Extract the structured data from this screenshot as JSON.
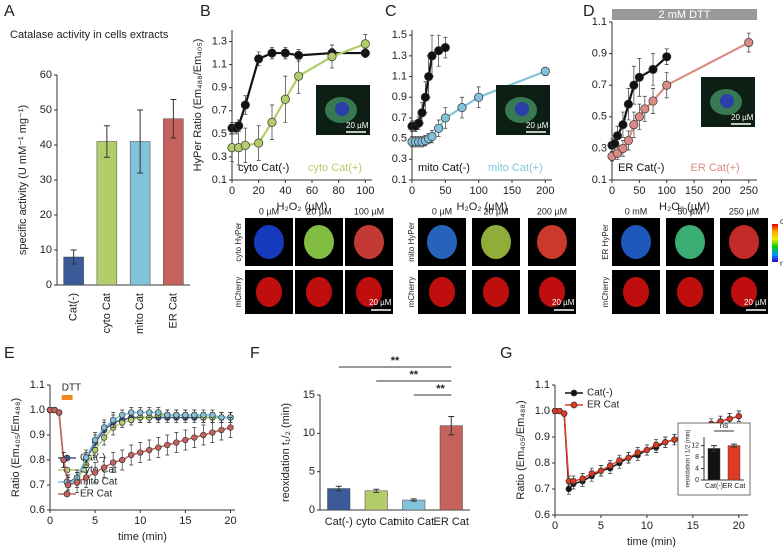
{
  "chart_data": [
    {
      "panel": "A",
      "type": "bar",
      "title": "Catalase activity in cells extracts",
      "y_label": "specific activity (U mM⁻¹ mg⁻¹)",
      "categories": [
        "Cat(-)",
        "cyto Cat",
        "mito Cat",
        "ER Cat"
      ],
      "values": [
        8,
        41,
        41,
        47.5
      ],
      "errors": [
        2,
        4.5,
        9,
        5.5
      ],
      "colors": [
        "#3a5a98",
        "#b3cd6c",
        "#82c2da",
        "#c6625c"
      ],
      "ylim": [
        0,
        60
      ],
      "yticks": [
        0,
        10,
        20,
        30,
        40,
        50,
        60
      ]
    },
    {
      "panel": "B",
      "type": "scatter",
      "x_label": "H₂O₂ (µM)",
      "y_label": "HyPer Ratio (Em₄₈₈/Em₄₀₅)",
      "xlim": [
        0,
        105
      ],
      "xticks": [
        0,
        20,
        40,
        60,
        80,
        100
      ],
      "ylim": [
        0.1,
        1.4
      ],
      "yticks": [
        0.1,
        0.3,
        0.5,
        0.7,
        0.9,
        1.1,
        1.3
      ],
      "legend": "lower center",
      "legend_markers": false,
      "inset_scale": "20 µM",
      "series": [
        {
          "name": "cyto Cat(-)",
          "color": "#111111",
          "x": [
            0,
            3,
            5,
            10,
            20,
            30,
            40,
            50,
            75,
            100
          ],
          "values": [
            0.55,
            0.55,
            0.57,
            0.75,
            1.15,
            1.2,
            1.2,
            1.18,
            1.2,
            1.2
          ],
          "errors": [
            0.05,
            0.05,
            0.05,
            0.08,
            0.06,
            0.05,
            0.05,
            0.05,
            0.04,
            0.04
          ]
        },
        {
          "name": "cyto Cat(+)",
          "color": "#b3cd6c",
          "x": [
            0,
            5,
            10,
            20,
            30,
            40,
            50,
            75,
            100
          ],
          "values": [
            0.38,
            0.38,
            0.4,
            0.42,
            0.6,
            0.8,
            1.0,
            1.17,
            1.28
          ],
          "errors": [
            0.12,
            0.15,
            0.15,
            0.15,
            0.15,
            0.2,
            0.15,
            0.1,
            0.08
          ]
        }
      ],
      "micrographs": {
        "columns": [
          "0 µM",
          "20 µM",
          "100 µM"
        ],
        "rows": [
          "cyto HyPer",
          "mCherry"
        ],
        "scale_bar": "20 µM"
      }
    },
    {
      "panel": "C",
      "type": "scatter",
      "x_label": "H₂O₂ (µM)",
      "xlim": [
        0,
        210
      ],
      "xticks": [
        0,
        50,
        100,
        150,
        200
      ],
      "ylim": [
        0.1,
        1.55
      ],
      "yticks": [
        0.1,
        0.3,
        0.5,
        0.7,
        0.9,
        1.1,
        1.3,
        1.5
      ],
      "legend": "lower center",
      "legend_markers": false,
      "inset_scale": "20 µM",
      "series": [
        {
          "name": "mito Cat(-)",
          "color": "#111111",
          "x": [
            0,
            5,
            10,
            15,
            20,
            25,
            30,
            40,
            50
          ],
          "values": [
            0.62,
            0.62,
            0.65,
            0.75,
            0.9,
            1.1,
            1.3,
            1.35,
            1.38
          ],
          "errors": [
            0.05,
            0.05,
            0.06,
            0.1,
            0.15,
            0.2,
            0.2,
            0.15,
            0.1
          ]
        },
        {
          "name": "mito Cat(+)",
          "color": "#82c2da",
          "x": [
            0,
            5,
            10,
            15,
            20,
            25,
            30,
            40,
            50,
            75,
            100,
            200
          ],
          "values": [
            0.47,
            0.47,
            0.47,
            0.47,
            0.48,
            0.5,
            0.52,
            0.6,
            0.7,
            0.8,
            0.9,
            1.15
          ],
          "errors": [
            0.05,
            0.05,
            0.05,
            0.05,
            0.05,
            0.05,
            0.06,
            0.08,
            0.1,
            0.1,
            0.1,
            0.04
          ]
        }
      ],
      "micrographs": {
        "columns": [
          "0 µM",
          "20 µM",
          "200 µM"
        ],
        "rows": [
          "mito HyPer",
          "mCherry"
        ],
        "scale_bar": "20 µM"
      }
    },
    {
      "panel": "D",
      "type": "scatter",
      "x_label": "H₂O₂ (µM)",
      "annotation": "2 mM DTT",
      "xlim": [
        0,
        265
      ],
      "xticks": [
        0,
        50,
        100,
        150,
        200,
        250
      ],
      "ylim": [
        0.1,
        1.1
      ],
      "yticks": [
        0.1,
        0.3,
        0.5,
        0.7,
        0.9,
        1.1
      ],
      "legend": "lower center",
      "legend_markers": false,
      "inset_scale": "20 µM",
      "series": [
        {
          "name": "ER Cat(-)",
          "color": "#111111",
          "x": [
            0,
            5,
            10,
            20,
            30,
            40,
            50,
            75,
            100
          ],
          "values": [
            0.32,
            0.33,
            0.38,
            0.45,
            0.58,
            0.7,
            0.75,
            0.8,
            0.88
          ],
          "errors": [
            0.04,
            0.05,
            0.06,
            0.08,
            0.1,
            0.12,
            0.12,
            0.1,
            0.05
          ]
        },
        {
          "name": "ER Cat(+)",
          "color": "#d98b84",
          "x": [
            0,
            10,
            20,
            30,
            40,
            50,
            60,
            75,
            100,
            250
          ],
          "values": [
            0.25,
            0.27,
            0.3,
            0.35,
            0.45,
            0.5,
            0.55,
            0.6,
            0.7,
            0.97
          ],
          "errors": [
            0.03,
            0.04,
            0.05,
            0.06,
            0.08,
            0.08,
            0.08,
            0.08,
            0.08,
            0.06
          ]
        }
      ],
      "micrographs": {
        "columns": [
          "0 mM",
          "50 µM",
          "250 µM"
        ],
        "rows": [
          "ER HyPer",
          "mCherry"
        ],
        "scale_bar": "20 µM",
        "colorbar": [
          "ox",
          "red"
        ]
      }
    },
    {
      "panel": "E",
      "type": "line",
      "x_label": "time (min)",
      "y_label": "Ratio (Em₄₀₅/Em₄₈₈)",
      "annotation": "DTT",
      "xlim": [
        0,
        20.5
      ],
      "xticks": [
        0,
        5,
        10,
        15,
        20
      ],
      "ylim": [
        0.6,
        1.1
      ],
      "yticks": [
        0.6,
        0.7,
        0.8,
        0.9,
        {
          "value": 1,
          "label": "1.0"
        },
        1.1
      ],
      "legend": "lower left",
      "legend_markers": true,
      "x": [
        0,
        0.5,
        1,
        1.5,
        2,
        3,
        4,
        5,
        6,
        7,
        8,
        9,
        10,
        11,
        12,
        13,
        14,
        15,
        16,
        17,
        18,
        19,
        20
      ],
      "series": [
        {
          "name": "Cat(-)",
          "color": "#3a5a98",
          "values": [
            1,
            1,
            0.99,
            0.8,
            0.71,
            0.73,
            0.8,
            0.87,
            0.92,
            0.95,
            0.96,
            0.97,
            0.97,
            0.97,
            0.97,
            0.97,
            0.97,
            0.97,
            0.97,
            0.97,
            0.97,
            0.97,
            0.97
          ],
          "errors": [
            0.01,
            0.01,
            0.01,
            0.03,
            0.03,
            0.03,
            0.03,
            0.03,
            0.03,
            0.03,
            0.02,
            0.02,
            0.02,
            0.02,
            0.02,
            0.02,
            0.02,
            0.02,
            0.02,
            0.02,
            0.02,
            0.02,
            0.02
          ]
        },
        {
          "name": "cyto Cat",
          "color": "#b3cd6c",
          "values": [
            1,
            1,
            0.99,
            0.8,
            0.7,
            0.72,
            0.78,
            0.84,
            0.89,
            0.93,
            0.95,
            0.96,
            0.97,
            0.97,
            0.98,
            0.98,
            0.98,
            0.98,
            0.98,
            0.97,
            0.97,
            0.97,
            0.97
          ],
          "errors": [
            0.01,
            0.01,
            0.01,
            0.03,
            0.03,
            0.03,
            0.03,
            0.03,
            0.03,
            0.03,
            0.02,
            0.02,
            0.02,
            0.02,
            0.02,
            0.02,
            0.02,
            0.02,
            0.02,
            0.02,
            0.02,
            0.02,
            0.02
          ]
        },
        {
          "name": "mito Cat",
          "color": "#82c2da",
          "values": [
            1,
            1,
            0.99,
            0.8,
            0.7,
            0.73,
            0.81,
            0.88,
            0.93,
            0.96,
            0.98,
            0.99,
            0.99,
            0.99,
            0.99,
            0.98,
            0.98,
            0.98,
            0.98,
            0.98,
            0.98,
            0.97,
            0.97
          ],
          "errors": [
            0.01,
            0.01,
            0.01,
            0.03,
            0.03,
            0.03,
            0.03,
            0.03,
            0.03,
            0.03,
            0.02,
            0.02,
            0.02,
            0.02,
            0.02,
            0.02,
            0.02,
            0.02,
            0.02,
            0.02,
            0.02,
            0.02,
            0.02
          ]
        },
        {
          "name": "ER Cat",
          "color": "#c6625c",
          "values": [
            1,
            1,
            0.99,
            0.8,
            0.7,
            0.71,
            0.73,
            0.75,
            0.77,
            0.79,
            0.8,
            0.82,
            0.83,
            0.84,
            0.85,
            0.86,
            0.87,
            0.88,
            0.89,
            0.9,
            0.91,
            0.92,
            0.93
          ],
          "errors": [
            0.01,
            0.01,
            0.01,
            0.03,
            0.04,
            0.04,
            0.04,
            0.04,
            0.04,
            0.04,
            0.04,
            0.04,
            0.04,
            0.04,
            0.04,
            0.04,
            0.04,
            0.04,
            0.04,
            0.04,
            0.04,
            0.04,
            0.04
          ]
        }
      ]
    },
    {
      "panel": "F",
      "type": "bar",
      "y_label": "reoxidation t₁/₂ (min)",
      "significance": [
        "**",
        "**",
        "**"
      ],
      "categories": [
        "Cat(-)",
        "cyto Cat",
        "mito Cat",
        "ER Cat"
      ],
      "values": [
        2.8,
        2.5,
        1.3,
        11
      ],
      "errors": [
        0.3,
        0.2,
        0.15,
        1.2
      ],
      "colors": [
        "#3a5a98",
        "#b3cd6c",
        "#82c2da",
        "#c6625c"
      ],
      "ylim": [
        0,
        15
      ],
      "yticks": [
        0,
        5,
        10,
        15
      ]
    },
    {
      "panel": "G",
      "type": "line",
      "x_label": "time (min)",
      "y_label": "Ratio (Em₄₀₅/Em₄₈₈)",
      "xlim": [
        0,
        21
      ],
      "xticks": [
        0,
        5,
        10,
        15,
        20
      ],
      "ylim": [
        0.6,
        1.1
      ],
      "yticks": [
        0.6,
        0.7,
        0.8,
        0.9,
        {
          "value": 1,
          "label": "1.0"
        },
        1.1
      ],
      "legend": "upper left",
      "legend_markers": true,
      "x": [
        0,
        0.5,
        1,
        1.5,
        2,
        3,
        4,
        5,
        6,
        7,
        8,
        9,
        10,
        11,
        12,
        13,
        14,
        15,
        16,
        17,
        18,
        19,
        20
      ],
      "series": [
        {
          "name": "Cat(-)",
          "color": "#111111",
          "values": [
            1,
            1,
            0.99,
            0.7,
            0.72,
            0.73,
            0.75,
            0.77,
            0.78,
            0.8,
            0.82,
            0.83,
            0.85,
            0.86,
            0.88,
            0.89,
            0.9,
            0.92,
            0.93,
            0.94,
            0.96,
            0.97,
            0.98
          ],
          "errors": [
            0.01,
            0.01,
            0.01,
            0.02,
            0.02,
            0.02,
            0.02,
            0.02,
            0.02,
            0.02,
            0.02,
            0.02,
            0.02,
            0.02,
            0.02,
            0.02,
            0.02,
            0.02,
            0.02,
            0.02,
            0.02,
            0.02,
            0.02
          ]
        },
        {
          "name": "ER Cat",
          "color": "#e03a22",
          "values": [
            1,
            1,
            0.99,
            0.73,
            0.73,
            0.74,
            0.76,
            0.77,
            0.79,
            0.81,
            0.82,
            0.84,
            0.85,
            0.87,
            0.88,
            0.89,
            0.91,
            0.92,
            0.93,
            0.95,
            0.96,
            0.97,
            0.98
          ],
          "errors": [
            0.01,
            0.01,
            0.01,
            0.02,
            0.02,
            0.02,
            0.02,
            0.02,
            0.02,
            0.02,
            0.02,
            0.02,
            0.02,
            0.02,
            0.02,
            0.02,
            0.02,
            0.02,
            0.02,
            0.02,
            0.02,
            0.02,
            0.02
          ]
        }
      ],
      "inset": {
        "type": "bar",
        "y_label": "reoxidation t 1/2 (min)",
        "annotation": "ns",
        "categories": [
          "Cat(-)",
          "ER Cat"
        ],
        "values": [
          11,
          12
        ],
        "errors": [
          1,
          0.5
        ],
        "colors": [
          "#111111",
          "#e03a22"
        ],
        "ylim": [
          0,
          15
        ],
        "yticks": [
          0,
          4,
          8,
          12
        ]
      }
    }
  ]
}
